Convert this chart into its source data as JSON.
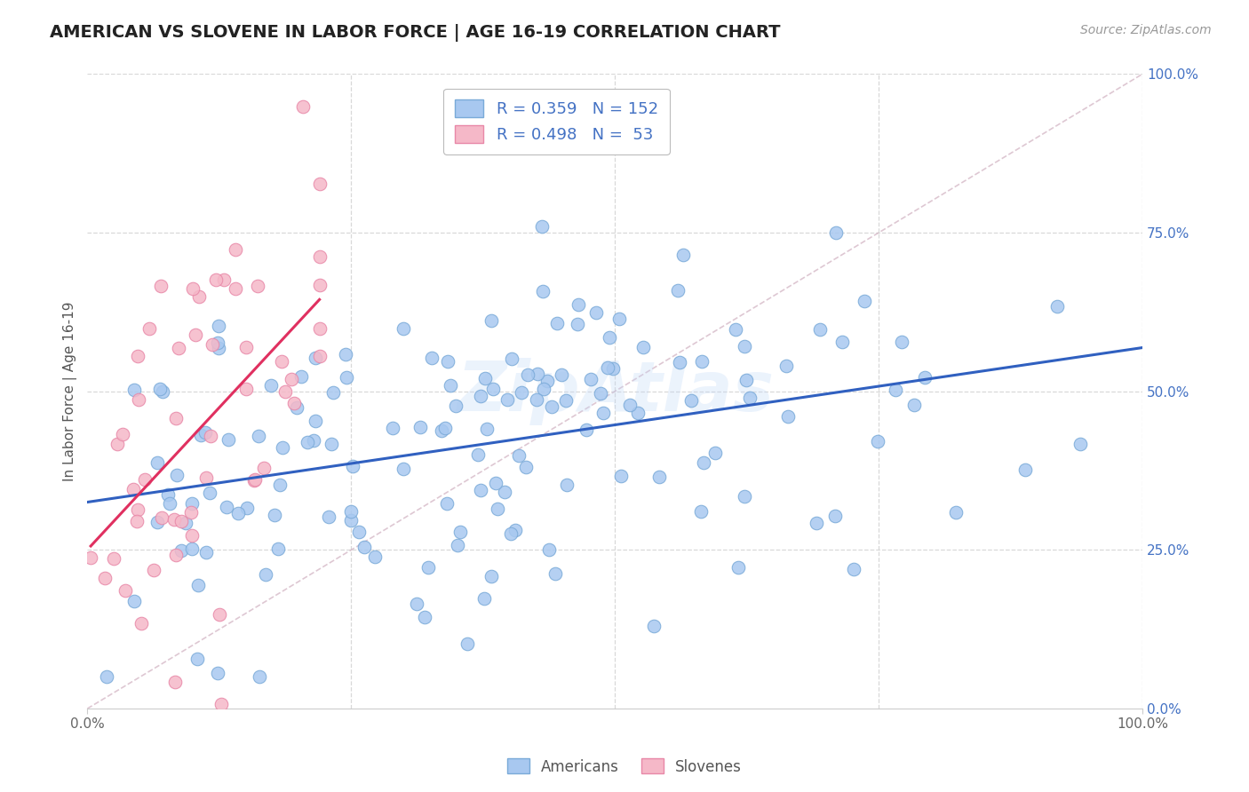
{
  "title": "AMERICAN VS SLOVENE IN LABOR FORCE | AGE 16-19 CORRELATION CHART",
  "source": "Source: ZipAtlas.com",
  "ylabel": "In Labor Force | Age 16-19",
  "watermark": "ZipAtlas",
  "xlim": [
    0,
    1
  ],
  "ylim": [
    0,
    1
  ],
  "xticks": [
    0.0,
    1.0
  ],
  "xtick_labels": [
    "0.0%",
    "100.0%"
  ],
  "yticks": [
    0.0,
    0.25,
    0.5,
    0.75,
    1.0
  ],
  "ytick_labels_right": [
    "0.0%",
    "25.0%",
    "50.0%",
    "75.0%",
    "100.0%"
  ],
  "american_color": "#a8c8f0",
  "american_edge": "#7aaad8",
  "slovene_color": "#f5b8c8",
  "slovene_edge": "#e888a8",
  "american_R": 0.359,
  "american_N": 152,
  "slovene_R": 0.498,
  "slovene_N": 53,
  "blue_line_color": "#3060c0",
  "pink_line_color": "#e03060",
  "diag_color": "#d0b0c0",
  "legend_text_color": "#4472c4",
  "right_tick_color": "#4472c4",
  "title_fontsize": 14,
  "label_fontsize": 11,
  "tick_fontsize": 11,
  "source_fontsize": 10,
  "background_color": "#ffffff",
  "grid_color": "#d8d8d8",
  "american_seed": 12,
  "slovene_seed": 99
}
